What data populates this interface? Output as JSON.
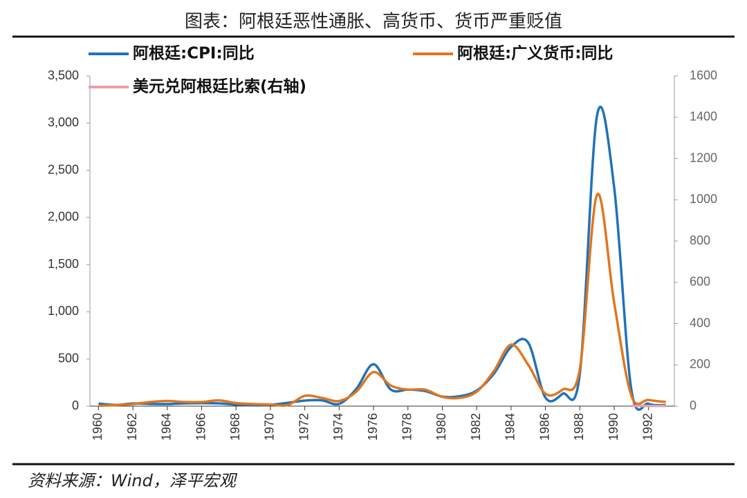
{
  "chart_data": {
    "type": "line",
    "title": "图表：阿根廷恶性通胀、高货币、货币严重贬值",
    "source": "资料来源：Wind，泽平宏观",
    "x": [
      1960,
      1961,
      1962,
      1963,
      1964,
      1965,
      1966,
      1967,
      1968,
      1969,
      1970,
      1971,
      1972,
      1973,
      1974,
      1975,
      1976,
      1977,
      1978,
      1979,
      1980,
      1981,
      1982,
      1983,
      1984,
      1985,
      1986,
      1987,
      1988,
      1989,
      1990,
      1991,
      1992,
      1993
    ],
    "xlim": [
      1959.5,
      1993.5
    ],
    "xticks": [
      1960,
      1962,
      1964,
      1966,
      1968,
      1970,
      1972,
      1974,
      1976,
      1978,
      1980,
      1982,
      1984,
      1986,
      1988,
      1990,
      1992
    ],
    "ylim": [
      0,
      3500
    ],
    "yticks": [
      0,
      500,
      {
        "value": 1000,
        "label": "1,000"
      },
      {
        "value": 1500,
        "label": "1,500"
      },
      {
        "value": 2000,
        "label": "2,000"
      },
      {
        "value": 2500,
        "label": "2,500"
      },
      {
        "value": 3000,
        "label": "3,000"
      },
      {
        "value": 3500,
        "label": "3,500"
      }
    ],
    "y2lim": [
      0,
      1600
    ],
    "y2ticks": [
      0,
      200,
      400,
      600,
      800,
      1000,
      1200,
      1400,
      1600
    ],
    "series": [
      {
        "name": "阿根廷:CPI:同比",
        "color": "#1f72b8",
        "values": [
          27,
          13,
          28,
          24,
          22,
          29,
          32,
          29,
          16,
          8,
          14,
          35,
          59,
          61,
          24,
          183,
          444,
          176,
          175,
          160,
          101,
          105,
          165,
          344,
          627,
          672,
          90,
          131,
          343,
          3080,
          2314,
          172,
          25,
          11
        ]
      },
      {
        "name": "阿根廷:广义货币:同比",
        "color": "#e0761f",
        "axis": "y2",
        "values": [
          2,
          5,
          10,
          20,
          25,
          20,
          20,
          28,
          15,
          10,
          8,
          5,
          50,
          40,
          25,
          70,
          165,
          100,
          80,
          80,
          45,
          40,
          70,
          170,
          298,
          200,
          60,
          80,
          180,
          1024,
          500,
          50,
          30,
          20
        ]
      },
      {
        "name": "美元兑阿根廷比索(右轴)",
        "color": "#e8a0a8",
        "axis": "y2",
        "values": [
          null,
          null,
          null,
          null,
          null,
          null,
          null,
          null,
          null,
          null,
          null,
          null,
          null,
          null,
          null,
          null,
          null,
          null,
          null,
          null,
          null,
          null,
          null,
          null,
          null,
          null,
          null,
          null,
          null,
          null,
          null,
          0.95,
          0.99,
          1
        ]
      }
    ]
  }
}
